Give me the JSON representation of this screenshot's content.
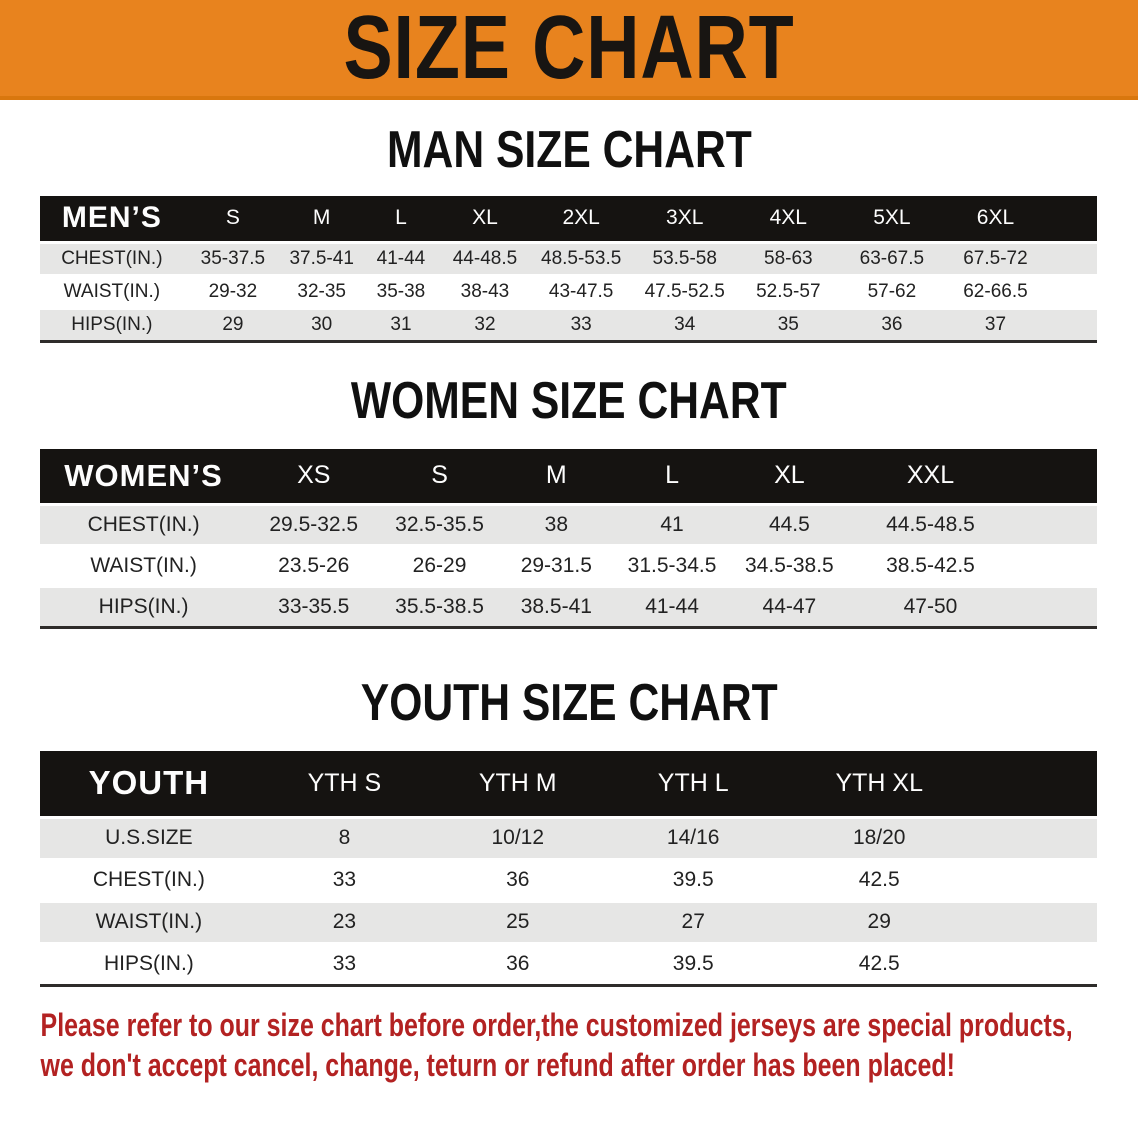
{
  "banner": {
    "title": "SIZE CHART"
  },
  "sections": {
    "man": {
      "heading": "MAN SIZE CHART"
    },
    "women": {
      "heading": "WOMEN SIZE CHART"
    },
    "youth": {
      "heading": "YOUTH SIZE CHART"
    }
  },
  "tables": {
    "mens": {
      "label": "MEN’S",
      "columns": [
        "S",
        "M",
        "L",
        "XL",
        "2XL",
        "3XL",
        "4XL",
        "5XL",
        "6XL"
      ],
      "rows": [
        {
          "label": "CHEST(IN.)",
          "values": [
            "35-37.5",
            "37.5-41",
            "41-44",
            "44-48.5",
            "48.5-53.5",
            "53.5-58",
            "58-63",
            "63-67.5",
            "67.5-72"
          ]
        },
        {
          "label": "WAIST(IN.)",
          "values": [
            "29-32",
            "32-35",
            "35-38",
            "38-43",
            "43-47.5",
            "47.5-52.5",
            "52.5-57",
            "57-62",
            "62-66.5"
          ]
        },
        {
          "label": "HIPS(IN.)",
          "values": [
            "29",
            "30",
            "31",
            "32",
            "33",
            "34",
            "35",
            "36",
            "37"
          ]
        }
      ]
    },
    "womens": {
      "label": "WOMEN’S",
      "columns": [
        "XS",
        "S",
        "M",
        "L",
        "XL",
        "XXL"
      ],
      "rows": [
        {
          "label": "CHEST(IN.)",
          "values": [
            "29.5-32.5",
            "32.5-35.5",
            "38",
            "41",
            "44.5",
            "44.5-48.5"
          ]
        },
        {
          "label": "WAIST(IN.)",
          "values": [
            "23.5-26",
            "26-29",
            "29-31.5",
            "31.5-34.5",
            "34.5-38.5",
            "38.5-42.5"
          ]
        },
        {
          "label": "HIPS(IN.)",
          "values": [
            "33-35.5",
            "35.5-38.5",
            "38.5-41",
            "41-44",
            "44-47",
            "47-50"
          ]
        }
      ]
    },
    "youth": {
      "label": "YOUTH",
      "columns": [
        "YTH S",
        "YTH M",
        "YTH L",
        "YTH XL"
      ],
      "rows": [
        {
          "label": "U.S.SIZE",
          "values": [
            "8",
            "10/12",
            "14/16",
            "18/20"
          ]
        },
        {
          "label": "CHEST(IN.)",
          "values": [
            "33",
            "36",
            "39.5",
            "42.5"
          ]
        },
        {
          "label": "WAIST(IN.)",
          "values": [
            "23",
            "25",
            "27",
            "29"
          ]
        },
        {
          "label": "HIPS(IN.)",
          "values": [
            "33",
            "36",
            "39.5",
            "42.5"
          ]
        }
      ]
    }
  },
  "disclaimer": {
    "line1": "Please refer to our size chart before order,the customized jerseys are special products,",
    "line2": "we don't accept cancel, change, teturn or refund after order has been placed!"
  },
  "colors": {
    "banner": "#E8831E",
    "header": "#151311",
    "row_gray": "#E6E6E5",
    "red": "#B32222"
  }
}
